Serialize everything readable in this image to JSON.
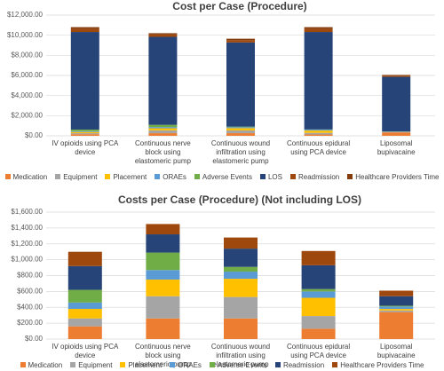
{
  "chart_data": [
    {
      "type": "bar",
      "stacked": true,
      "title": "Cost per Case (Procedure)",
      "categories": [
        "IV opioids using PCA device",
        "Continuous nerve block using elastomeric pump",
        "Continuous wound infiltration using elastomeric pump",
        "Continuous epidural using PCA device",
        "Liposomal bupivacaine"
      ],
      "series": [
        {
          "name": "Medication",
          "color": "#ed7d31",
          "values": [
            160,
            260,
            260,
            130,
            340
          ]
        },
        {
          "name": "Equipment",
          "color": "#a5a5a5",
          "values": [
            100,
            280,
            270,
            160,
            20
          ]
        },
        {
          "name": "Placement",
          "color": "#ffc000",
          "values": [
            120,
            210,
            230,
            230,
            20
          ]
        },
        {
          "name": "ORAEs",
          "color": "#5b9bd5",
          "values": [
            80,
            120,
            90,
            80,
            30
          ]
        },
        {
          "name": "Adverse Events",
          "color": "#70ad47",
          "values": [
            160,
            220,
            60,
            30,
            10
          ]
        },
        {
          "name": "LOS",
          "color": "#264478",
          "values": [
            9700,
            8750,
            8370,
            9690,
            5440
          ]
        },
        {
          "name": "Readmission",
          "color": "#9e480e",
          "values": [
            300,
            230,
            230,
            300,
            120
          ]
        },
        {
          "name": "Healthcare Providers Time",
          "color": "#843c0c",
          "values": [
            180,
            130,
            140,
            180,
            70
          ]
        }
      ],
      "ylim": [
        0,
        12000
      ],
      "yticks": [
        {
          "value": 0,
          "label": "$0.00"
        },
        {
          "value": 2000,
          "label": "$2,000.00"
        },
        {
          "value": 4000,
          "label": "$4,000.00"
        },
        {
          "value": 6000,
          "label": "$6,000.00"
        },
        {
          "value": 8000,
          "label": "$8,000.00"
        },
        {
          "value": 10000,
          "label": "$10,000.00"
        },
        {
          "value": 12000,
          "label": "$12,000.00"
        }
      ],
      "grid": true,
      "legend": "bottom"
    },
    {
      "type": "bar",
      "stacked": true,
      "title": "Costs per Case (Procedure) (Not including LOS)",
      "categories": [
        "IV opioids using PCA device",
        "Continuous nerve block using elastomeric pump",
        "Continuous wound infiltration using elastomeric pump",
        "Continuous epidural using PCA device",
        "Liposomal bupivacaine"
      ],
      "series": [
        {
          "name": "Medication",
          "color": "#ed7d31",
          "values": [
            160,
            260,
            260,
            130,
            340
          ]
        },
        {
          "name": "Equipment",
          "color": "#a5a5a5",
          "values": [
            100,
            280,
            270,
            160,
            20
          ]
        },
        {
          "name": "Placement",
          "color": "#ffc000",
          "values": [
            120,
            210,
            230,
            230,
            20
          ]
        },
        {
          "name": "ORAEs",
          "color": "#5b9bd5",
          "values": [
            80,
            120,
            90,
            80,
            30
          ]
        },
        {
          "name": "Adverse Events",
          "color": "#70ad47",
          "values": [
            160,
            220,
            60,
            30,
            10
          ]
        },
        {
          "name": "Readmission",
          "color": "#264478",
          "values": [
            300,
            230,
            230,
            300,
            120
          ]
        },
        {
          "name": "Healthcare Providers Time",
          "color": "#9e480e",
          "values": [
            180,
            130,
            140,
            180,
            70
          ]
        }
      ],
      "ylim": [
        0,
        1600
      ],
      "yticks": [
        {
          "value": 0,
          "label": "$0.00"
        },
        {
          "value": 200,
          "label": "$200.00"
        },
        {
          "value": 400,
          "label": "$400.00"
        },
        {
          "value": 600,
          "label": "$600.00"
        },
        {
          "value": 800,
          "label": "$800.00"
        },
        {
          "value": 1000,
          "label": "$1,000.00"
        },
        {
          "value": 1200,
          "label": "$1,200.00"
        },
        {
          "value": 1400,
          "label": "$1,400.00"
        },
        {
          "value": 1600,
          "label": "$1,600.00"
        }
      ],
      "grid": true,
      "legend": "bottom"
    }
  ]
}
